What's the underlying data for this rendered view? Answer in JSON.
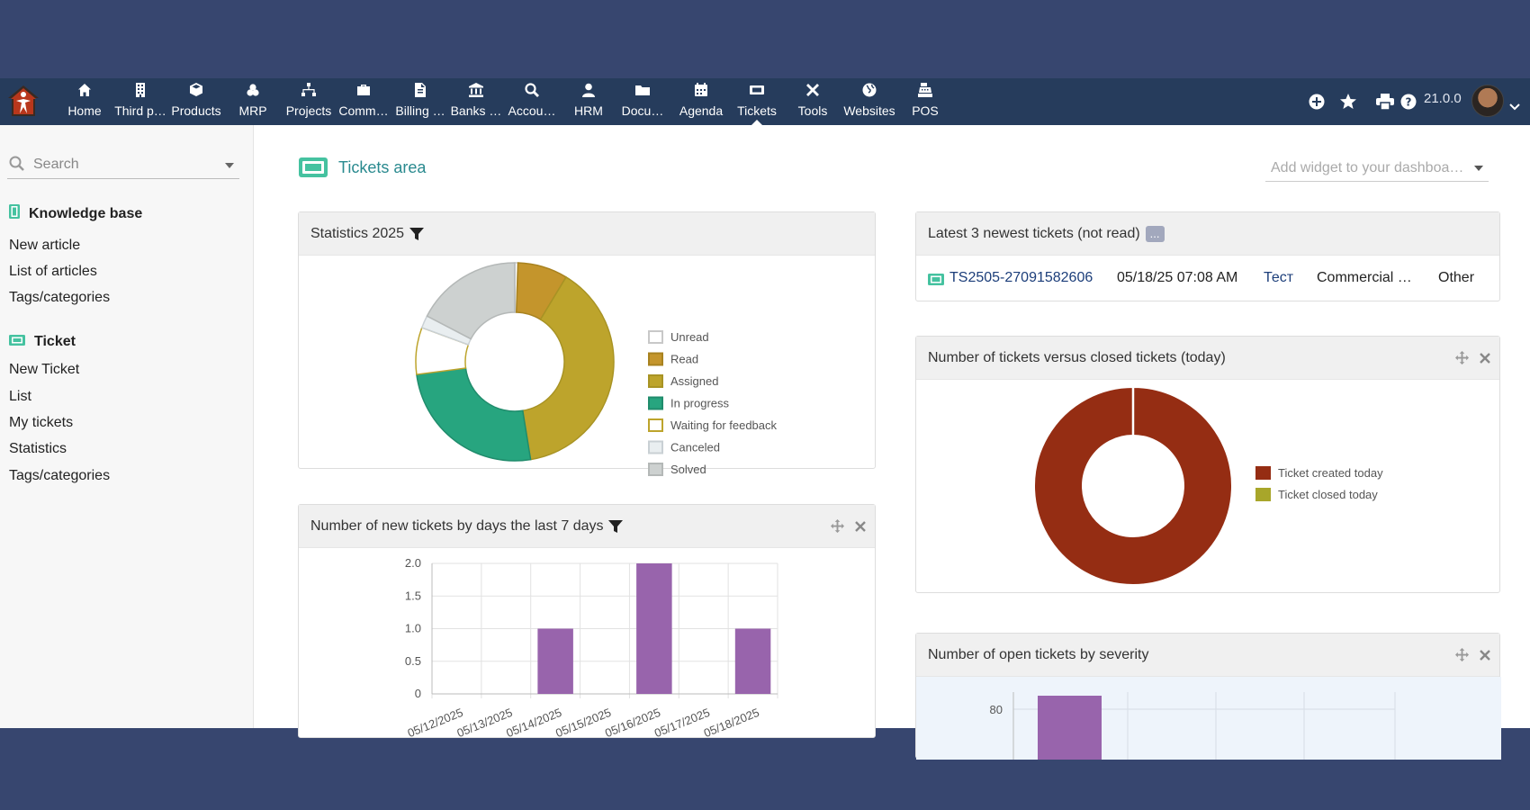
{
  "app": {
    "version": "21.0.0"
  },
  "menu": [
    {
      "id": "home",
      "label": "Home",
      "icon": "home-icon"
    },
    {
      "id": "third-party",
      "label": "Third p…",
      "icon": "building-icon"
    },
    {
      "id": "products",
      "label": "Products",
      "icon": "box-icon"
    },
    {
      "id": "mrp",
      "label": "MRP",
      "icon": "cubes-icon"
    },
    {
      "id": "projects",
      "label": "Projects",
      "icon": "sitemap-icon"
    },
    {
      "id": "commercial",
      "label": "Comm…",
      "icon": "briefcase-icon"
    },
    {
      "id": "billing",
      "label": "Billing …",
      "icon": "invoice-icon"
    },
    {
      "id": "banks",
      "label": "Banks …",
      "icon": "bank-icon"
    },
    {
      "id": "accounting",
      "label": "Accou…",
      "icon": "search-dollar-icon"
    },
    {
      "id": "hrm",
      "label": "HRM",
      "icon": "user-icon"
    },
    {
      "id": "documents",
      "label": "Docu…",
      "icon": "folder-icon"
    },
    {
      "id": "agenda",
      "label": "Agenda",
      "icon": "calendar-icon"
    },
    {
      "id": "tickets",
      "label": "Tickets",
      "icon": "ticket-icon",
      "active": true
    },
    {
      "id": "tools",
      "label": "Tools",
      "icon": "tools-icon"
    },
    {
      "id": "websites",
      "label": "Websites",
      "icon": "globe-icon"
    },
    {
      "id": "pos",
      "label": "POS",
      "icon": "cash-register-icon"
    }
  ],
  "sidebar": {
    "search_placeholder": "Search",
    "sections": [
      {
        "title": "Knowledge base",
        "icon": "book-icon",
        "links": [
          "New article",
          "List of articles",
          "Tags/categories"
        ]
      },
      {
        "title": "Ticket",
        "icon": "ticket-icon",
        "links": [
          "New Ticket",
          "List",
          "My tickets",
          "Statistics",
          "Tags/categories"
        ]
      }
    ]
  },
  "main": {
    "title": "Tickets area",
    "widget_placeholder": "Add widget to your dashboa…"
  },
  "panels": {
    "stats": {
      "title": "Statistics 2025"
    },
    "newtickets": {
      "title": "Number of new tickets by days the last 7 days"
    },
    "latest": {
      "title": "Latest 3 newest tickets (not read)",
      "more_badge": "...",
      "row": {
        "ref": "TS2505-27091582606",
        "date": "05/18/25 07:08 AM",
        "subject": "Тест",
        "type": "Commercial …",
        "category": "Other"
      }
    },
    "versus": {
      "title": "Number of tickets versus closed tickets (today)"
    },
    "severity": {
      "title": "Number of open tickets by severity"
    }
  },
  "chart_data": [
    {
      "type": "pie",
      "title": "Statistics 2025",
      "donut": true,
      "legend_position": "right",
      "labels": [
        "Unread",
        "Read",
        "Assigned",
        "In progress",
        "Waiting for feedback",
        "Canceled",
        "Solved"
      ],
      "values": [
        0.5,
        8,
        38,
        25,
        7.5,
        2,
        17
      ],
      "colors": [
        "#ffffff",
        "#c4952c",
        "#bda42c",
        "#27a57f",
        "#ffffff",
        "#e9eef0",
        "#cdd1d0"
      ],
      "borders": [
        "#c8c8c8",
        "#a8821f",
        "#a89324",
        "#208c6c",
        "#bda42c",
        "#c9d0d4",
        "#b4b8b7"
      ]
    },
    {
      "type": "bar",
      "title": "Number of new tickets by days the last 7 days",
      "categories": [
        "05/12/2025",
        "05/13/2025",
        "05/14/2025",
        "05/15/2025",
        "05/16/2025",
        "05/17/2025",
        "05/18/2025"
      ],
      "values": [
        0,
        0,
        1,
        0,
        2,
        0,
        1
      ],
      "ylim": [
        0,
        2
      ],
      "yticks": [
        "0",
        "0.5",
        "1.0",
        "1.5",
        "2.0"
      ],
      "grid": true,
      "color": "#9864ac"
    },
    {
      "type": "pie",
      "title": "Number of tickets versus closed tickets (today)",
      "donut": true,
      "legend_position": "right",
      "labels": [
        "Ticket created today",
        "Ticket closed today"
      ],
      "values": [
        1,
        0
      ],
      "colors": [
        "#952d13",
        "#a8a62a"
      ]
    },
    {
      "type": "bar",
      "title": "Number of open tickets by severity",
      "yticks_visible": [
        "80"
      ],
      "color": "#9864ac"
    }
  ]
}
